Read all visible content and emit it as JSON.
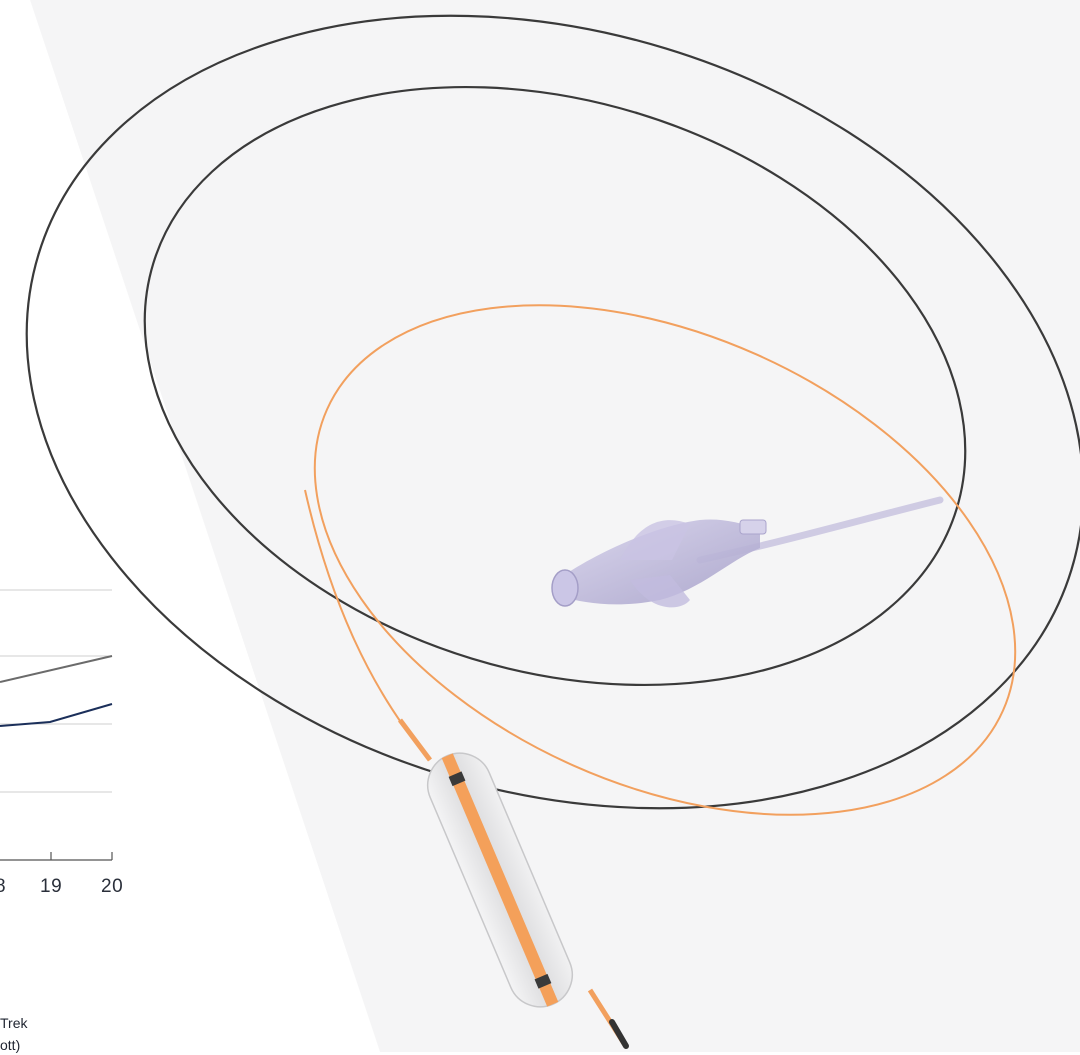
{
  "chart_fragment": {
    "x_tick_labels": [
      "8",
      "19",
      "20"
    ],
    "series_colors": {
      "upper_line": "#6b6b6b",
      "lower_line": "#1b2f5a",
      "grid": "#cfcfcf"
    }
  },
  "caption": {
    "line1": "Trek",
    "line2": "ott)"
  },
  "colors": {
    "wire_dark": "#3a3a3a",
    "shaft_orange": "#f2a05e",
    "hub_purple": "#b9b3d6",
    "balloon": "#e9e9ea"
  }
}
